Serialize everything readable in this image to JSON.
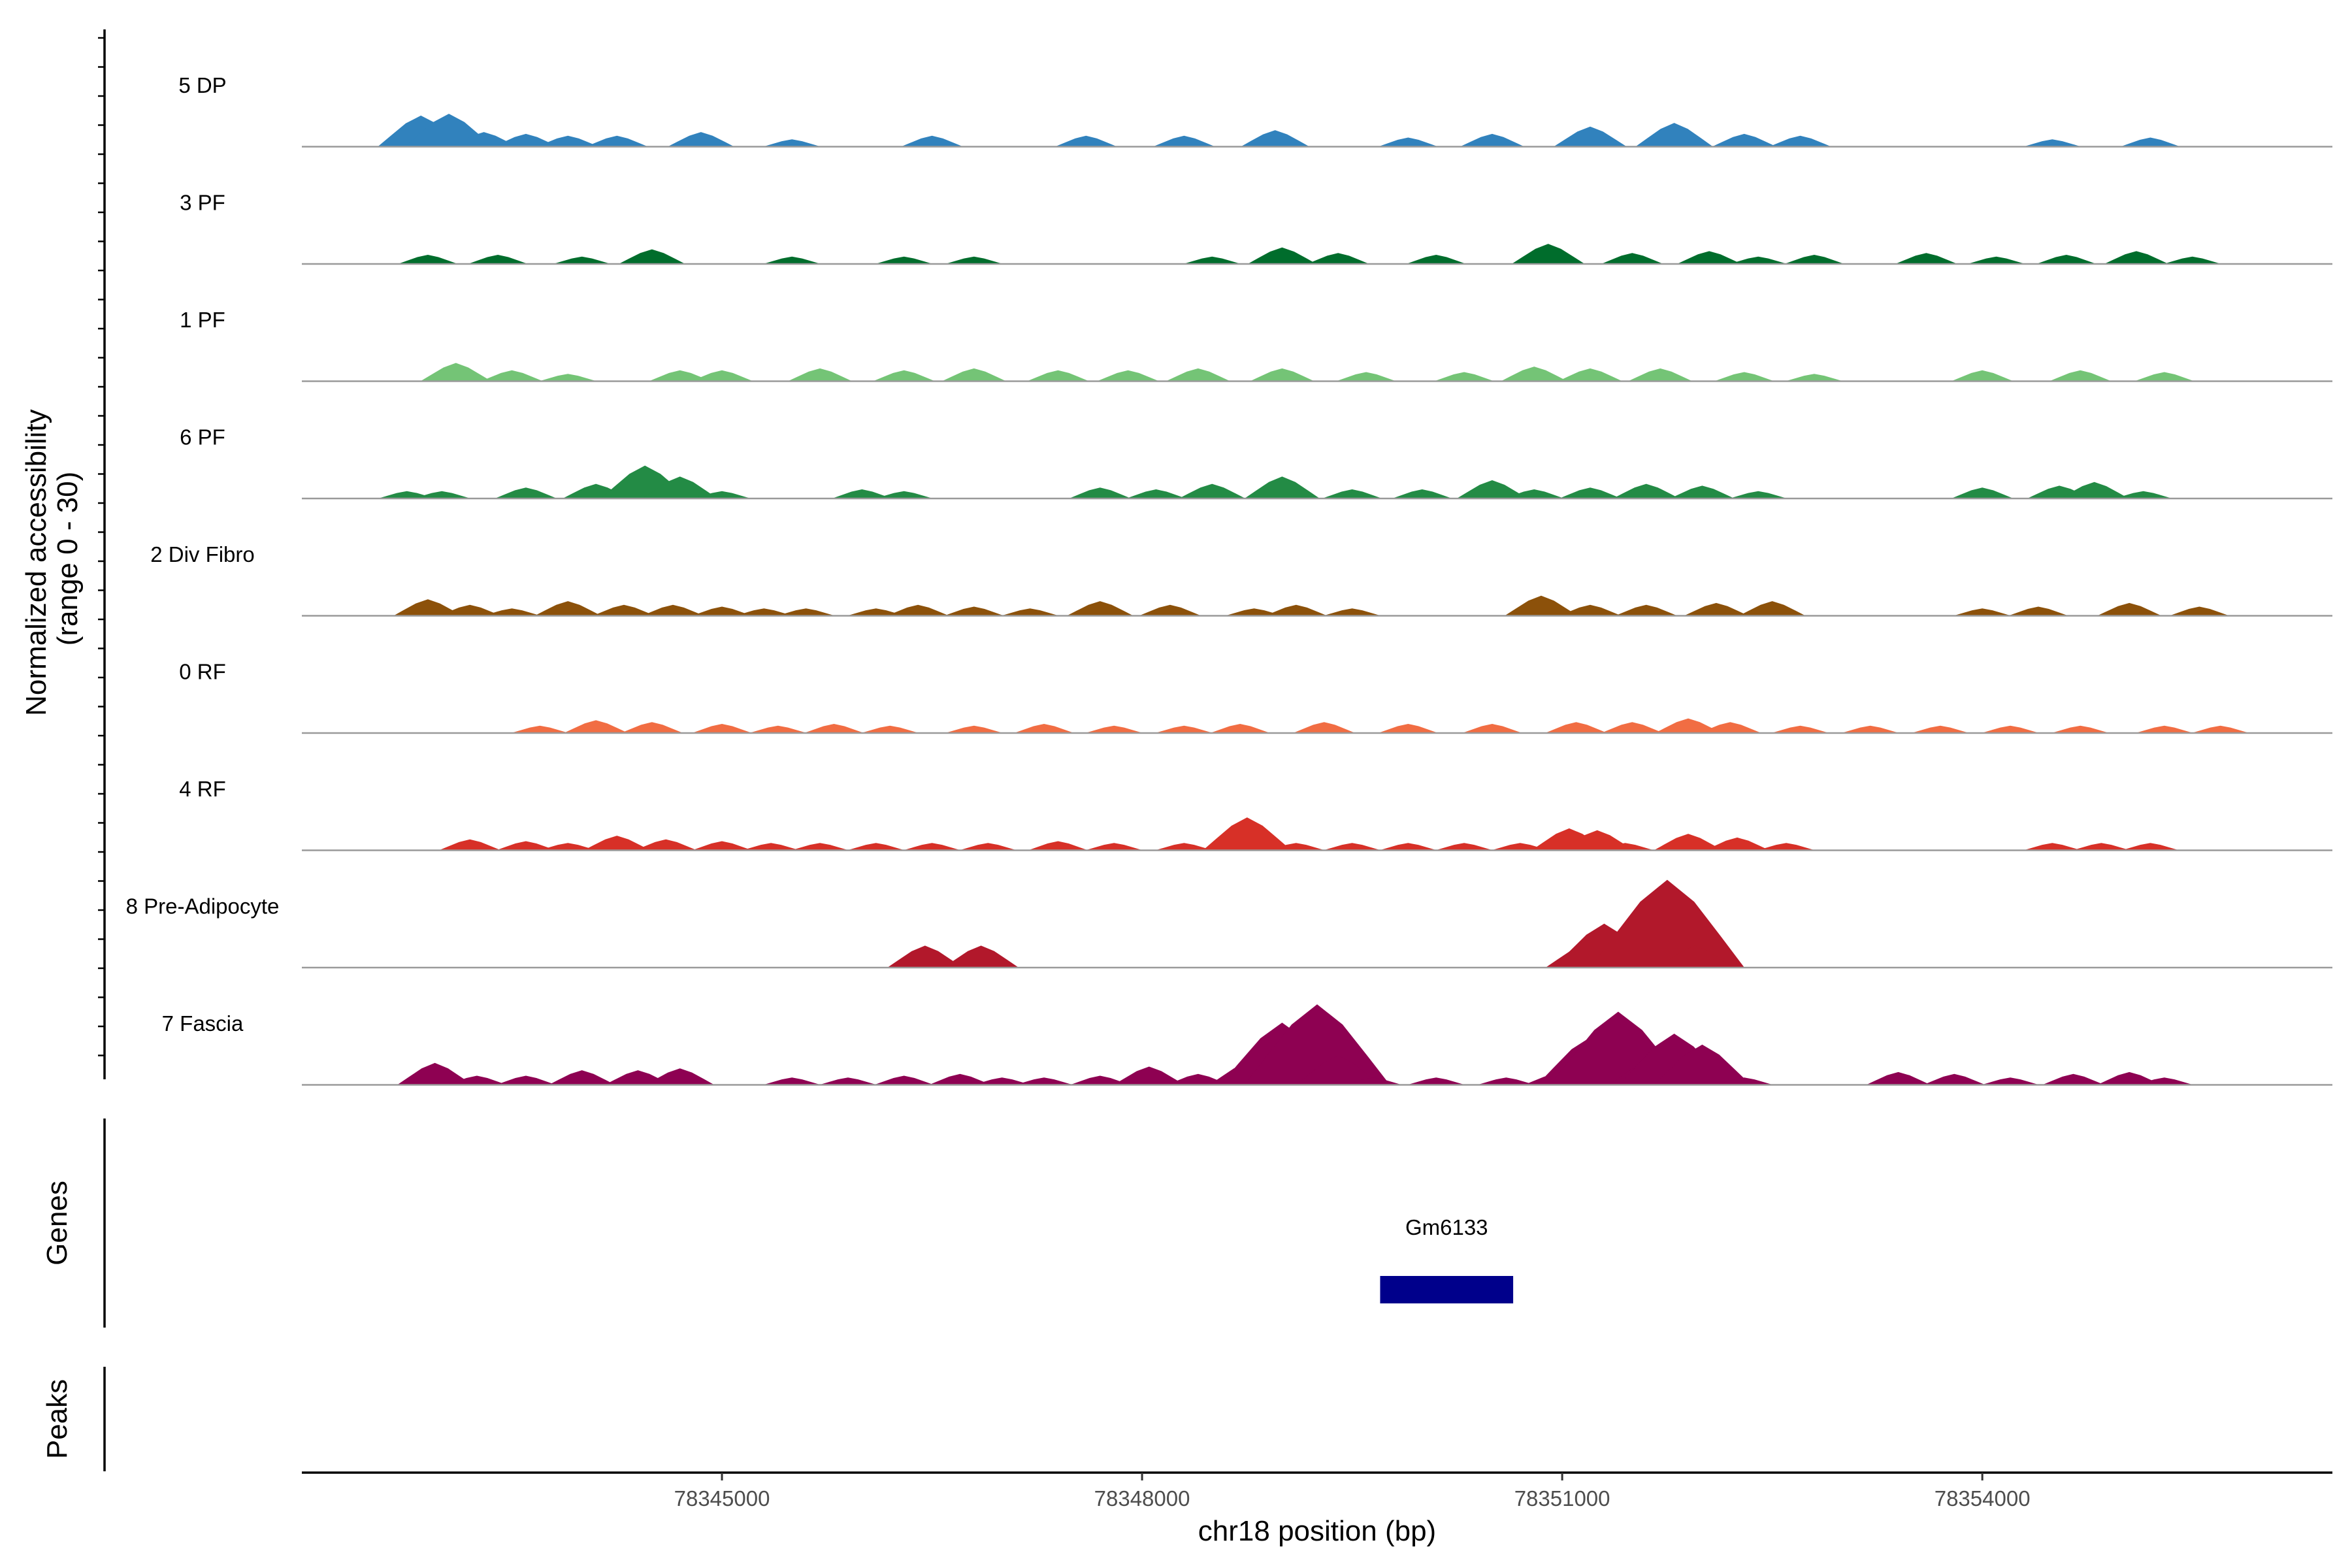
{
  "chart_data": {
    "type": "area",
    "y_axis_title_line1": "Normalized accessibility",
    "y_axis_title_line2": "(range 0 - 30)",
    "x_axis_title": "chr18 position (bp)",
    "genes_panel_label": "Genes",
    "peaks_panel_label": "Peaks",
    "xlim": [
      78342000,
      78356500
    ],
    "ylim": [
      0,
      30
    ],
    "x_ticks": [
      78345000,
      78348000,
      78351000,
      78354000
    ],
    "x_tick_labels": [
      "78345000",
      "78348000",
      "78351000",
      "78354000"
    ],
    "grid": false,
    "tracks": [
      {
        "name": "5 DP",
        "color": "#3182bd",
        "peaks": [
          [
            78342850,
            8.5
          ],
          [
            78343050,
            9
          ],
          [
            78343300,
            4
          ],
          [
            78343600,
            3.5
          ],
          [
            78343900,
            3
          ],
          [
            78344250,
            3
          ],
          [
            78344850,
            4
          ],
          [
            78345500,
            2
          ],
          [
            78346500,
            3
          ],
          [
            78347600,
            3
          ],
          [
            78348300,
            3
          ],
          [
            78348950,
            4.5
          ],
          [
            78349900,
            2.5
          ],
          [
            78350500,
            3.5
          ],
          [
            78351200,
            5.5
          ],
          [
            78351800,
            6.5
          ],
          [
            78352300,
            3.5
          ],
          [
            78352700,
            3
          ],
          [
            78354500,
            2
          ],
          [
            78355200,
            2.5
          ]
        ]
      },
      {
        "name": "3 PF",
        "color": "#006d2c",
        "peaks": [
          [
            78342900,
            2.5
          ],
          [
            78343400,
            2.5
          ],
          [
            78344000,
            2
          ],
          [
            78344500,
            4
          ],
          [
            78345500,
            2
          ],
          [
            78346300,
            2
          ],
          [
            78346800,
            2
          ],
          [
            78348500,
            2
          ],
          [
            78349000,
            4.5
          ],
          [
            78349400,
            3
          ],
          [
            78350100,
            2.5
          ],
          [
            78350900,
            5.5
          ],
          [
            78351500,
            3
          ],
          [
            78352050,
            3.5
          ],
          [
            78352400,
            2
          ],
          [
            78352800,
            2.5
          ],
          [
            78353600,
            3
          ],
          [
            78354100,
            2
          ],
          [
            78354600,
            2.5
          ],
          [
            78355100,
            3.5
          ],
          [
            78355500,
            2
          ]
        ]
      },
      {
        "name": "1 PF",
        "color": "#74c476",
        "peaks": [
          [
            78343100,
            5
          ],
          [
            78343500,
            3
          ],
          [
            78343900,
            2
          ],
          [
            78344700,
            3
          ],
          [
            78345000,
            3
          ],
          [
            78345700,
            3.5
          ],
          [
            78346300,
            3
          ],
          [
            78346800,
            3.5
          ],
          [
            78347400,
            3
          ],
          [
            78347900,
            3
          ],
          [
            78348400,
            3.5
          ],
          [
            78349000,
            3.5
          ],
          [
            78349600,
            2.5
          ],
          [
            78350300,
            2.5
          ],
          [
            78350800,
            4
          ],
          [
            78351200,
            3.5
          ],
          [
            78351700,
            3.5
          ],
          [
            78352300,
            2.5
          ],
          [
            78352800,
            2
          ],
          [
            78354000,
            3
          ],
          [
            78354700,
            3
          ],
          [
            78355300,
            2.5
          ]
        ]
      },
      {
        "name": "6 PF",
        "color": "#238b45",
        "peaks": [
          [
            78342750,
            2
          ],
          [
            78343000,
            2
          ],
          [
            78343600,
            3
          ],
          [
            78344100,
            4
          ],
          [
            78344450,
            9
          ],
          [
            78344700,
            6
          ],
          [
            78345000,
            2
          ],
          [
            78346000,
            2.5
          ],
          [
            78346300,
            2
          ],
          [
            78347700,
            3
          ],
          [
            78348100,
            2.5
          ],
          [
            78348500,
            4
          ],
          [
            78349000,
            6
          ],
          [
            78349500,
            2.5
          ],
          [
            78350000,
            2.5
          ],
          [
            78350500,
            5
          ],
          [
            78350800,
            2.5
          ],
          [
            78351200,
            3
          ],
          [
            78351600,
            4
          ],
          [
            78352000,
            3.5
          ],
          [
            78352400,
            2
          ],
          [
            78354000,
            3
          ],
          [
            78354550,
            3.5
          ],
          [
            78354800,
            4.5
          ],
          [
            78355150,
            2
          ]
        ]
      },
      {
        "name": "2 Div Fibro",
        "color": "#8c510a",
        "peaks": [
          [
            78342900,
            4.5
          ],
          [
            78343200,
            3
          ],
          [
            78343500,
            2
          ],
          [
            78343900,
            4
          ],
          [
            78344300,
            3
          ],
          [
            78344650,
            3
          ],
          [
            78345000,
            2.5
          ],
          [
            78345300,
            2
          ],
          [
            78345600,
            2
          ],
          [
            78346100,
            2
          ],
          [
            78346400,
            3
          ],
          [
            78346800,
            2.5
          ],
          [
            78347200,
            2
          ],
          [
            78347700,
            4
          ],
          [
            78348200,
            3
          ],
          [
            78348800,
            2
          ],
          [
            78349100,
            3
          ],
          [
            78349500,
            2
          ],
          [
            78350850,
            5.5
          ],
          [
            78351200,
            3
          ],
          [
            78351600,
            3
          ],
          [
            78352100,
            3.5
          ],
          [
            78352500,
            4
          ],
          [
            78354000,
            2
          ],
          [
            78354400,
            2.5
          ],
          [
            78355050,
            3.5
          ],
          [
            78355550,
            2.5
          ]
        ]
      },
      {
        "name": "0 RF",
        "color": "#f16d43",
        "peaks": [
          [
            78343700,
            2
          ],
          [
            78344100,
            3.5
          ],
          [
            78344500,
            3
          ],
          [
            78345000,
            2.5
          ],
          [
            78345400,
            2
          ],
          [
            78345800,
            2.5
          ],
          [
            78346200,
            2
          ],
          [
            78346800,
            2
          ],
          [
            78347300,
            2.5
          ],
          [
            78347800,
            2
          ],
          [
            78348300,
            2
          ],
          [
            78348700,
            2.5
          ],
          [
            78349300,
            3
          ],
          [
            78349900,
            2.5
          ],
          [
            78350500,
            2.5
          ],
          [
            78351100,
            3
          ],
          [
            78351500,
            3
          ],
          [
            78351900,
            4
          ],
          [
            78352200,
            3
          ],
          [
            78352700,
            2
          ],
          [
            78353200,
            2
          ],
          [
            78353700,
            2
          ],
          [
            78354200,
            2
          ],
          [
            78354700,
            2
          ],
          [
            78355300,
            2
          ],
          [
            78355700,
            2
          ]
        ]
      },
      {
        "name": "4 RF",
        "color": "#d73027",
        "peaks": [
          [
            78343200,
            3
          ],
          [
            78343600,
            2.5
          ],
          [
            78343900,
            2
          ],
          [
            78344250,
            4
          ],
          [
            78344600,
            3
          ],
          [
            78345000,
            2.5
          ],
          [
            78345350,
            2
          ],
          [
            78345700,
            2
          ],
          [
            78346100,
            2
          ],
          [
            78346500,
            2
          ],
          [
            78346900,
            2
          ],
          [
            78347400,
            2.5
          ],
          [
            78347800,
            2
          ],
          [
            78348300,
            2
          ],
          [
            78348750,
            9
          ],
          [
            78349100,
            2
          ],
          [
            78349500,
            2
          ],
          [
            78349900,
            2
          ],
          [
            78350300,
            2
          ],
          [
            78350700,
            2
          ],
          [
            78351050,
            6
          ],
          [
            78351250,
            5.5
          ],
          [
            78351450,
            2
          ],
          [
            78351900,
            4.5
          ],
          [
            78352250,
            3.5
          ],
          [
            78352600,
            2
          ],
          [
            78354500,
            2
          ],
          [
            78354850,
            2
          ],
          [
            78355200,
            2
          ]
        ]
      },
      {
        "name": "8 Pre-Adipocyte",
        "color": "#b2182b",
        "peaks": [
          [
            78346450,
            6
          ],
          [
            78346850,
            6
          ],
          [
            78351150,
            6
          ],
          [
            78351300,
            12
          ],
          [
            78351500,
            6
          ],
          [
            78351700,
            13
          ],
          [
            78351750,
            24
          ],
          [
            78351950,
            6
          ]
        ]
      },
      {
        "name": "7 Fascia",
        "color": "#8e0152",
        "peaks": [
          [
            78342950,
            6
          ],
          [
            78343250,
            2.5
          ],
          [
            78343600,
            2.5
          ],
          [
            78344000,
            4
          ],
          [
            78344400,
            4
          ],
          [
            78344700,
            4.5
          ],
          [
            78345500,
            2
          ],
          [
            78345900,
            2
          ],
          [
            78346300,
            2.5
          ],
          [
            78346700,
            3
          ],
          [
            78347000,
            2
          ],
          [
            78347300,
            2
          ],
          [
            78347700,
            2.5
          ],
          [
            78348050,
            5
          ],
          [
            78348400,
            3
          ],
          [
            78348750,
            6
          ],
          [
            78349000,
            17
          ],
          [
            78349250,
            22
          ],
          [
            78349400,
            8
          ],
          [
            78349650,
            2
          ],
          [
            78350100,
            2
          ],
          [
            78350600,
            2
          ],
          [
            78350950,
            3
          ],
          [
            78351200,
            13
          ],
          [
            78351400,
            20
          ],
          [
            78351600,
            6
          ],
          [
            78351800,
            14
          ],
          [
            78352000,
            11
          ],
          [
            78352300,
            2
          ],
          [
            78353400,
            3.5
          ],
          [
            78353800,
            3
          ],
          [
            78354200,
            2
          ],
          [
            78354650,
            3
          ],
          [
            78355050,
            3.5
          ],
          [
            78355300,
            2
          ]
        ]
      }
    ],
    "genes": [
      {
        "name": "Gm6133",
        "start": 78349700,
        "end": 78350650,
        "color": "#00008b"
      }
    ]
  }
}
